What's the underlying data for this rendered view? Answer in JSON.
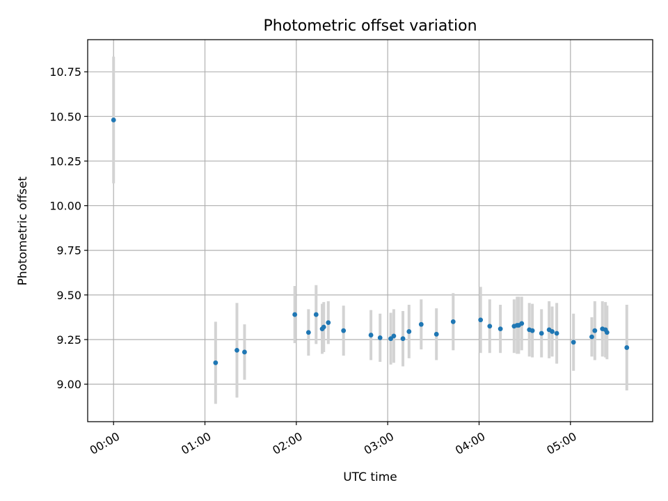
{
  "chart_data": {
    "type": "scatter",
    "title": "Photometric offset variation",
    "xlabel": "UTC time",
    "ylabel": "Photometric offset",
    "x_ticks": [
      "00:00",
      "01:00",
      "02:00",
      "03:00",
      "04:00",
      "05:00"
    ],
    "y_ticks": [
      "9.00",
      "9.25",
      "9.50",
      "9.75",
      "10.00",
      "10.25",
      "10.50",
      "10.75"
    ],
    "xlim": [
      "23:43",
      "05:54"
    ],
    "ylim": [
      8.79,
      10.93
    ],
    "grid": true,
    "colors": {
      "point": "#1f77b4",
      "errorbar": "#d3d3d3",
      "grid": "#b0b0b0"
    },
    "points": [
      {
        "x": "00:00",
        "y": 10.48,
        "err": 0.355
      },
      {
        "x": "01:07",
        "y": 9.12,
        "err": 0.23
      },
      {
        "x": "01:21",
        "y": 9.19,
        "err": 0.265
      },
      {
        "x": "01:26",
        "y": 9.18,
        "err": 0.155
      },
      {
        "x": "01:59",
        "y": 9.39,
        "err": 0.16
      },
      {
        "x": "02:08",
        "y": 9.29,
        "err": 0.13
      },
      {
        "x": "02:13",
        "y": 9.39,
        "err": 0.165
      },
      {
        "x": "02:17",
        "y": 9.31,
        "err": 0.14
      },
      {
        "x": "02:18",
        "y": 9.32,
        "err": 0.14
      },
      {
        "x": "02:21",
        "y": 9.345,
        "err": 0.12
      },
      {
        "x": "02:31",
        "y": 9.3,
        "err": 0.14
      },
      {
        "x": "02:49",
        "y": 9.275,
        "err": 0.14
      },
      {
        "x": "02:55",
        "y": 9.26,
        "err": 0.135
      },
      {
        "x": "03:02",
        "y": 9.255,
        "err": 0.145
      },
      {
        "x": "03:04",
        "y": 9.27,
        "err": 0.15
      },
      {
        "x": "03:10",
        "y": 9.255,
        "err": 0.155
      },
      {
        "x": "03:14",
        "y": 9.295,
        "err": 0.15
      },
      {
        "x": "03:22",
        "y": 9.335,
        "err": 0.14
      },
      {
        "x": "03:32",
        "y": 9.28,
        "err": 0.145
      },
      {
        "x": "03:43",
        "y": 9.35,
        "err": 0.16
      },
      {
        "x": "04:01",
        "y": 9.36,
        "err": 0.185
      },
      {
        "x": "04:07",
        "y": 9.325,
        "err": 0.15
      },
      {
        "x": "04:14",
        "y": 9.31,
        "err": 0.135
      },
      {
        "x": "04:23",
        "y": 9.325,
        "err": 0.15
      },
      {
        "x": "04:25",
        "y": 9.33,
        "err": 0.16
      },
      {
        "x": "04:26",
        "y": 9.33,
        "err": 0.16
      },
      {
        "x": "04:28",
        "y": 9.34,
        "err": 0.15
      },
      {
        "x": "04:33",
        "y": 9.305,
        "err": 0.15
      },
      {
        "x": "04:35",
        "y": 9.3,
        "err": 0.15
      },
      {
        "x": "04:41",
        "y": 9.285,
        "err": 0.135
      },
      {
        "x": "04:46",
        "y": 9.305,
        "err": 0.16
      },
      {
        "x": "04:48",
        "y": 9.295,
        "err": 0.14
      },
      {
        "x": "04:51",
        "y": 9.285,
        "err": 0.17
      },
      {
        "x": "05:02",
        "y": 9.235,
        "err": 0.16
      },
      {
        "x": "05:14",
        "y": 9.265,
        "err": 0.11
      },
      {
        "x": "05:16",
        "y": 9.3,
        "err": 0.165
      },
      {
        "x": "05:21",
        "y": 9.31,
        "err": 0.155
      },
      {
        "x": "05:23",
        "y": 9.305,
        "err": 0.155
      },
      {
        "x": "05:24",
        "y": 9.29,
        "err": 0.15
      },
      {
        "x": "05:37",
        "y": 9.205,
        "err": 0.24
      }
    ]
  }
}
